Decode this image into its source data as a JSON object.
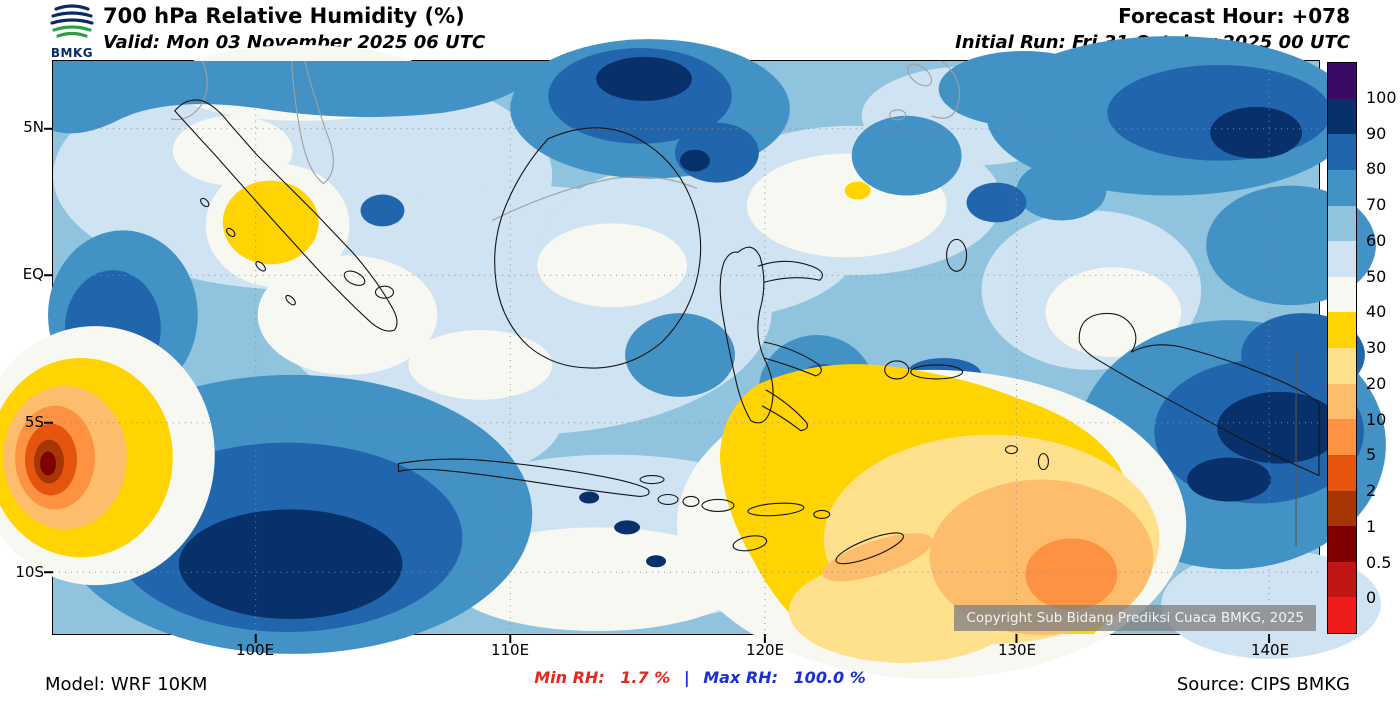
{
  "header": {
    "logo_text": "BMKG",
    "title": "700 hPa Relative Humidity (%)",
    "valid": "Valid: Mon 03 November 2025 06 UTC",
    "forecast_hour": "Forecast Hour: +078",
    "initial_run": "Initial Run: Fri 31 October 2025 00 UTC"
  },
  "map": {
    "lat_labels": [
      "5N",
      "EQ",
      "5S",
      "10S"
    ],
    "lon_labels": [
      "100E",
      "110E",
      "120E",
      "130E",
      "140E"
    ],
    "copyright": "Copyright Sub Bidang Prediksi Cuaca BMKG, 2025"
  },
  "colorbar": {
    "title": "Relative Humidity (%)",
    "labels": [
      "100",
      "90",
      "80",
      "70",
      "60",
      "50",
      "40",
      "30",
      "20",
      "10",
      "5",
      "2",
      "1",
      "0.5",
      "0"
    ],
    "colors": [
      "#3b0a66",
      "#08306b",
      "#2166ac",
      "#4292c6",
      "#8fc3de",
      "#cfe3f2",
      "#f8f8f3",
      "#ffd400",
      "#fee08d",
      "#fdbd6d",
      "#fd9243",
      "#e6550d",
      "#a63603",
      "#7f0000",
      "#c11616",
      "#ef1c1c"
    ]
  },
  "footer": {
    "model": "Model: WRF 10KM",
    "min_label": "Min RH:",
    "min_value": "1.7 %",
    "divider": "|",
    "max_label": "Max RH:",
    "max_value": "100.0 %",
    "source": "Source: CIPS BMKG"
  }
}
